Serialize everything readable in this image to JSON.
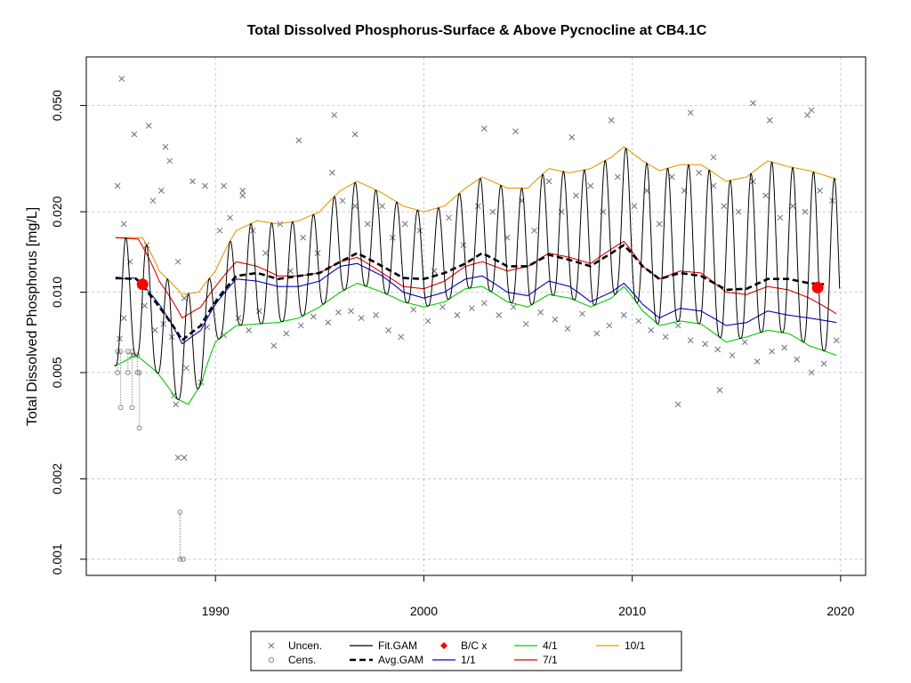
{
  "chart_data": {
    "type": "line",
    "title": "Total Dissolved Phosphorus-Surface & Above Pycnocline at CB4.1C",
    "xlabel": "",
    "ylabel": "Total Dissolved Phosphorus [mg/L]",
    "y_scale": "log",
    "xlim": [
      1983.8,
      2021.2
    ],
    "ylim": [
      0.00087,
      0.076
    ],
    "x_ticks": [
      1990,
      2000,
      2010,
      2020
    ],
    "x_tick_labels": [
      "1990",
      "2000",
      "2010",
      "2020"
    ],
    "y_ticks": [
      0.001,
      0.002,
      0.005,
      0.01,
      0.02,
      0.05
    ],
    "y_tick_labels": [
      "0.001",
      "0.002",
      "0.005",
      "0.010",
      "0.020",
      "0.050"
    ],
    "grid": true,
    "legend": {
      "position": "bottom",
      "entries": [
        {
          "label": "Uncen.",
          "kind": "x-marker",
          "color": "#6b7080"
        },
        {
          "label": "Cens.",
          "kind": "circle-marker",
          "color": "#8a8a8a"
        },
        {
          "label": "Fit.GAM",
          "kind": "line",
          "color": "#000000"
        },
        {
          "label": "Avg.GAM",
          "kind": "dashed",
          "color": "#000000"
        },
        {
          "label": "B/C x",
          "kind": "diamond",
          "color": "#ff0000"
        },
        {
          "label": "1/1",
          "kind": "line",
          "color": "#0000c0"
        },
        {
          "label": "4/1",
          "kind": "line",
          "color": "#00cc00"
        },
        {
          "label": "7/1",
          "kind": "line",
          "color": "#e00000"
        },
        {
          "label": "10/1",
          "kind": "line",
          "color": "#e69a00"
        }
      ]
    },
    "series": [
      {
        "name": "10/1",
        "color": "#e69a00",
        "x": [
          1985.2,
          1986.5,
          1987.3,
          1988.4,
          1989.2,
          1990.0,
          1991.0,
          1992.0,
          1993.0,
          1994.0,
          1995.0,
          1996.0,
          1996.8,
          1998.0,
          1999.0,
          2000.0,
          2001.0,
          2002.0,
          2002.8,
          2004.0,
          2005.0,
          2006.0,
          2007.0,
          2008.0,
          2009.0,
          2009.6,
          2010.5,
          2011.3,
          2012.3,
          2013.3,
          2014.5,
          2015.5,
          2016.5,
          2017.5,
          2018.5,
          2019.8
        ],
        "y": [
          0.016,
          0.016,
          0.012,
          0.0098,
          0.01,
          0.012,
          0.017,
          0.0185,
          0.018,
          0.0185,
          0.02,
          0.024,
          0.026,
          0.0235,
          0.021,
          0.02,
          0.021,
          0.0245,
          0.027,
          0.0245,
          0.0245,
          0.029,
          0.028,
          0.029,
          0.032,
          0.035,
          0.031,
          0.0285,
          0.03,
          0.03,
          0.026,
          0.027,
          0.031,
          0.0295,
          0.0285,
          0.0265
        ]
      },
      {
        "name": "7/1",
        "color": "#e00000",
        "x": [
          1985.2,
          1986.3,
          1987.3,
          1988.4,
          1989.3,
          1990.0,
          1991.0,
          1992.0,
          1993.0,
          1994.0,
          1995.0,
          1996.0,
          1996.8,
          1998.0,
          1999.0,
          2000.0,
          2001.0,
          2002.0,
          2002.8,
          2004.0,
          2005.0,
          2006.0,
          2007.0,
          2008.0,
          2009.0,
          2009.6,
          2010.5,
          2011.3,
          2012.3,
          2013.3,
          2014.5,
          2015.5,
          2016.5,
          2017.5,
          2018.5,
          2019.8
        ],
        "y": [
          0.016,
          0.0158,
          0.011,
          0.008,
          0.0088,
          0.0105,
          0.013,
          0.0125,
          0.0115,
          0.0115,
          0.0118,
          0.013,
          0.0135,
          0.0118,
          0.0105,
          0.0103,
          0.011,
          0.0125,
          0.013,
          0.012,
          0.0125,
          0.014,
          0.0135,
          0.0128,
          0.0145,
          0.0155,
          0.0125,
          0.0112,
          0.012,
          0.0118,
          0.01,
          0.0098,
          0.0105,
          0.0102,
          0.0095,
          0.0083
        ]
      },
      {
        "name": "1/1",
        "color": "#0000c0",
        "x": [
          1985.2,
          1986.2,
          1987.3,
          1988.4,
          1989.3,
          1990.0,
          1991.0,
          1992.0,
          1993.0,
          1994.0,
          1995.0,
          1996.0,
          1996.8,
          1998.0,
          1999.0,
          2000.0,
          2001.0,
          2002.0,
          2002.8,
          2004.0,
          2005.0,
          2006.0,
          2007.0,
          2008.0,
          2009.0,
          2009.6,
          2010.5,
          2011.3,
          2012.3,
          2013.3,
          2014.5,
          2015.5,
          2016.5,
          2017.5,
          2018.5,
          2019.8
        ],
        "y": [
          0.0112,
          0.0113,
          0.009,
          0.0064,
          0.0072,
          0.009,
          0.0112,
          0.011,
          0.0105,
          0.0105,
          0.011,
          0.0125,
          0.0128,
          0.0115,
          0.01,
          0.0095,
          0.01,
          0.0112,
          0.0115,
          0.01,
          0.0097,
          0.011,
          0.0105,
          0.0092,
          0.01,
          0.0108,
          0.009,
          0.008,
          0.0087,
          0.0085,
          0.0075,
          0.0077,
          0.0085,
          0.0082,
          0.008,
          0.0077
        ]
      },
      {
        "name": "4/1",
        "color": "#00cc00",
        "x": [
          1985.2,
          1986.2,
          1987.2,
          1988.1,
          1988.7,
          1989.3,
          1990.0,
          1991.0,
          1992.0,
          1993.0,
          1994.0,
          1995.0,
          1996.0,
          1996.8,
          1998.0,
          1999.0,
          2000.0,
          2001.0,
          2002.0,
          2002.8,
          2004.0,
          2005.0,
          2006.0,
          2007.0,
          2008.0,
          2009.0,
          2009.6,
          2010.5,
          2011.3,
          2012.3,
          2013.3,
          2014.5,
          2015.5,
          2016.5,
          2017.5,
          2018.5,
          2019.8
        ],
        "y": [
          0.0053,
          0.0058,
          0.005,
          0.004,
          0.0038,
          0.0045,
          0.0065,
          0.0075,
          0.0076,
          0.0077,
          0.008,
          0.0088,
          0.01,
          0.0108,
          0.01,
          0.0092,
          0.0088,
          0.0092,
          0.0103,
          0.0105,
          0.0092,
          0.0088,
          0.0098,
          0.0095,
          0.0088,
          0.0095,
          0.0105,
          0.0085,
          0.0075,
          0.0078,
          0.0076,
          0.0065,
          0.0068,
          0.0072,
          0.007,
          0.0063,
          0.0058
        ]
      },
      {
        "name": "Avg.GAM",
        "color": "#000000",
        "x": [
          1985.2,
          1986.2,
          1987.3,
          1988.4,
          1989.3,
          1990.0,
          1991.0,
          1992.0,
          1993.0,
          1994.0,
          1995.0,
          1996.0,
          1996.8,
          1998.0,
          1999.0,
          2000.0,
          2001.0,
          2002.0,
          2002.8,
          2004.0,
          2005.0,
          2006.0,
          2007.0,
          2008.0,
          2009.0,
          2009.6,
          2010.5,
          2011.3,
          2012.3,
          2013.3,
          2014.5,
          2015.5,
          2016.5,
          2017.5,
          2018.5,
          2019.2
        ],
        "y": [
          0.0113,
          0.0112,
          0.0088,
          0.0066,
          0.0075,
          0.0092,
          0.0115,
          0.0118,
          0.0112,
          0.0115,
          0.0118,
          0.013,
          0.014,
          0.0125,
          0.0113,
          0.0112,
          0.0118,
          0.0128,
          0.014,
          0.0125,
          0.0125,
          0.0138,
          0.0132,
          0.0125,
          0.014,
          0.015,
          0.0125,
          0.0112,
          0.0118,
          0.0115,
          0.0102,
          0.0103,
          0.0112,
          0.0112,
          0.0108,
          0.0107
        ]
      }
    ],
    "fit_gam": {
      "name": "Fit.GAM",
      "color": "#000000",
      "peak_month": 0.7,
      "x_start": 1985.15,
      "x_end": 2019.95
    },
    "bc_points": {
      "name": "B/C x",
      "color": "#ff0000",
      "x": [
        1986.5,
        2018.9
      ],
      "y": [
        0.0107,
        0.0104
      ]
    },
    "uncensored": {
      "name": "Uncen.",
      "color": "#6b7080",
      "x": [
        1985.3,
        1985.6,
        1985.9,
        1986.1,
        1986.7,
        1987.0,
        1987.4,
        1987.8,
        1988.2,
        1988.5,
        1988.9,
        1989.5,
        1990.2,
        1990.7,
        1991.3,
        1991.8,
        1992.4,
        1993.1,
        1993.6,
        1994.2,
        1994.9,
        1995.6,
        1996.1,
        1996.7,
        1997.3,
        1998.0,
        1998.5,
        1999.1,
        1999.8,
        2000.5,
        2001.2,
        2001.9,
        2002.6,
        2003.3,
        2004.0,
        2004.7,
        2005.3,
        2006.0,
        2006.6,
        2007.3,
        2008.0,
        2008.6,
        2009.3,
        2010.1,
        2010.7,
        2011.3,
        2011.9,
        2012.5,
        2013.2,
        2013.9,
        2014.4,
        2015.1,
        2015.8,
        2016.4,
        2017.1,
        2017.7,
        2018.3,
        2019.0,
        2019.6,
        1985.4,
        1985.6,
        1986.0,
        1986.6,
        1987.1,
        1987.5,
        1987.9,
        1988.0,
        1988.6,
        1989.3,
        1989.6,
        1990.4,
        1991.1,
        1991.6,
        1992.1,
        1992.8,
        1993.4,
        1994.1,
        1994.7,
        1995.4,
        1995.9,
        1996.5,
        1997.0,
        1997.7,
        1998.3,
        1998.9,
        1999.5,
        2000.2,
        2000.9,
        2001.6,
        2002.3,
        2002.9,
        2003.6,
        2004.3,
        2004.9,
        2005.6,
        2006.3,
        2006.9,
        2007.6,
        2008.3,
        2008.9,
        2009.6,
        2010.3,
        2010.9,
        2011.6,
        2012.2,
        2012.8,
        2013.5,
        2014.1,
        2014.8,
        2015.4,
        2016.0,
        2016.7,
        2017.3,
        2017.9,
        2018.6,
        2019.2,
        2019.8,
        1995.7,
        2012.8,
        2013.9,
        2015.8,
        2016.6,
        2018.4,
        2012.2,
        2014.2,
        1988.2,
        1988.5,
        1988.1,
        1985.5,
        1986.8,
        1987.6,
        2004.4,
        2002.9,
        2007.1,
        2009.0,
        1996.7,
        1994.0,
        1990.4,
        1991.3,
        2018.6
      ],
      "y": [
        0.025,
        0.018,
        0.013,
        0.039,
        0.015,
        0.022,
        0.024,
        0.031,
        0.013,
        0.0095,
        0.026,
        0.025,
        0.017,
        0.019,
        0.023,
        0.017,
        0.014,
        0.018,
        0.012,
        0.016,
        0.014,
        0.028,
        0.022,
        0.021,
        0.018,
        0.021,
        0.016,
        0.018,
        0.017,
        0.012,
        0.019,
        0.015,
        0.021,
        0.02,
        0.016,
        0.022,
        0.017,
        0.026,
        0.02,
        0.023,
        0.025,
        0.02,
        0.027,
        0.021,
        0.024,
        0.018,
        0.027,
        0.024,
        0.028,
        0.025,
        0.021,
        0.02,
        0.026,
        0.023,
        0.019,
        0.021,
        0.02,
        0.024,
        0.022,
        0.0067,
        0.008,
        0.0058,
        0.0089,
        0.0072,
        0.0076,
        0.0068,
        0.0041,
        0.0052,
        0.0046,
        0.0074,
        0.0069,
        0.008,
        0.0072,
        0.0085,
        0.0063,
        0.007,
        0.0075,
        0.0081,
        0.0077,
        0.0084,
        0.0085,
        0.008,
        0.0082,
        0.0072,
        0.0068,
        0.0086,
        0.0078,
        0.0088,
        0.0082,
        0.0087,
        0.0091,
        0.0082,
        0.0088,
        0.0076,
        0.0084,
        0.0079,
        0.0073,
        0.0083,
        0.007,
        0.0075,
        0.0082,
        0.0078,
        0.0072,
        0.0068,
        0.0075,
        0.0066,
        0.0064,
        0.0061,
        0.0058,
        0.0065,
        0.0055,
        0.006,
        0.0062,
        0.0056,
        0.005,
        0.0054,
        0.0066,
        0.046,
        0.047,
        0.032,
        0.051,
        0.044,
        0.046,
        0.0038,
        0.0043,
        0.0024,
        0.0024,
        0.0038,
        0.063,
        0.042,
        0.035,
        0.04,
        0.041,
        0.038,
        0.044,
        0.039,
        0.037,
        0.025,
        0.024,
        0.048
      ]
    },
    "censored": {
      "name": "Cens.",
      "color": "#8a8a8a",
      "x": [
        1985.3,
        1985.45,
        1985.8,
        1986.0,
        1986.25,
        1986.35,
        1988.3,
        1988.45
      ],
      "y_high": [
        0.006,
        0.006,
        0.006,
        0.006,
        0.0058,
        0.005,
        0.0015,
        0.001
      ],
      "y_low": [
        0.005,
        0.0037,
        0.005,
        0.0037,
        0.005,
        0.0031,
        0.001,
        0.001
      ]
    }
  }
}
